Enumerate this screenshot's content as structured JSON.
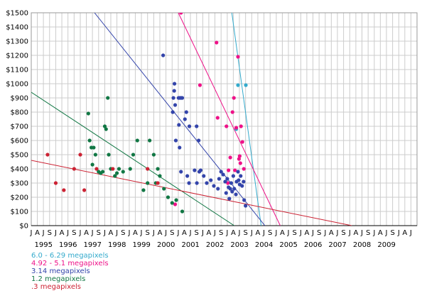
{
  "chart_data": {
    "type": "scatter",
    "title": "",
    "xlabel": "",
    "ylabel": "",
    "x_range": [
      "1995-01-01",
      "2010-09-30"
    ],
    "ylim": [
      0,
      1500
    ],
    "y_ticks": [
      {
        "value": 0,
        "label": "$0"
      },
      {
        "value": 100,
        "label": "$100"
      },
      {
        "value": 200,
        "label": "$200"
      },
      {
        "value": 300,
        "label": "$300"
      },
      {
        "value": 400,
        "label": "$400"
      },
      {
        "value": 500,
        "label": "$500"
      },
      {
        "value": 600,
        "label": "$600"
      },
      {
        "value": 700,
        "label": "$700"
      },
      {
        "value": 800,
        "label": "$800"
      },
      {
        "value": 900,
        "label": "$900"
      },
      {
        "value": 1000,
        "label": "$1000"
      },
      {
        "value": 1100,
        "label": "$1100"
      },
      {
        "value": 1200,
        "label": "$1200"
      },
      {
        "value": 1300,
        "label": "$1300"
      },
      {
        "value": 1400,
        "label": "$1400"
      },
      {
        "value": 1500,
        "label": "$1500"
      }
    ],
    "month_tick_labels": [
      "J",
      "A",
      "J",
      "S"
    ],
    "year_labels": [
      "1995",
      "1996",
      "1997",
      "1998",
      "1999",
      "2000",
      "2001",
      "2002",
      "2003",
      "2004",
      "2005",
      "2006",
      "2007",
      "2008",
      "2009"
    ],
    "grid": true,
    "legend_placement": "bottom-left",
    "series": [
      {
        "name": "6.0 - 6.29 megapixels",
        "color": "#33aacc",
        "points": [
          [
            "2003-05-15",
            680
          ],
          [
            "2003-06-10",
            990
          ],
          [
            "2003-10-05",
            990
          ]
        ],
        "trend": [
          [
            "2003-03-10",
            1500
          ],
          [
            "2004-05-20",
            0
          ]
        ]
      },
      {
        "name": "4.92 - 5.1 megapixels",
        "color": "#ee1188",
        "points": [
          [
            "2000-11-15",
            150
          ],
          [
            "2001-02-10",
            1500
          ],
          [
            "2001-11-20",
            990
          ],
          [
            "2002-07-25",
            1290
          ],
          [
            "2002-08-10",
            760
          ],
          [
            "2002-12-20",
            700
          ],
          [
            "2003-01-10",
            300
          ],
          [
            "2003-01-20",
            390
          ],
          [
            "2003-03-20",
            800
          ],
          [
            "2003-04-10",
            900
          ],
          [
            "2003-05-15",
            690
          ],
          [
            "2003-06-10",
            1190
          ],
          [
            "2003-06-25",
            470
          ],
          [
            "2003-07-05",
            490
          ],
          [
            "2003-07-15",
            440
          ],
          [
            "2003-07-25",
            700
          ],
          [
            "2003-08-15",
            590
          ],
          [
            "2003-04-25",
            390
          ],
          [
            "2003-02-15",
            480
          ],
          [
            "2003-09-05",
            400
          ]
        ],
        "trend": [
          [
            "2001-01-01",
            1500
          ],
          [
            "2005-03-01",
            0
          ]
        ]
      },
      {
        "name": "3.14 megapixels",
        "color": "#3344aa",
        "points": [
          [
            "2000-10-10",
            800
          ],
          [
            "2000-10-20",
            900
          ],
          [
            "2000-11-01",
            950
          ],
          [
            "2000-11-05",
            1000
          ],
          [
            "2000-11-15",
            850
          ],
          [
            "2000-11-25",
            600
          ],
          [
            "2001-01-05",
            900
          ],
          [
            "2001-01-20",
            900
          ],
          [
            "2001-02-05",
            900
          ],
          [
            "2001-02-15",
            900
          ],
          [
            "2001-03-01",
            900
          ],
          [
            "2001-04-10",
            750
          ],
          [
            "2001-05-01",
            800
          ],
          [
            "2000-05-20",
            1200
          ],
          [
            "2001-01-10",
            710
          ],
          [
            "2001-06-15",
            700
          ],
          [
            "2001-10-01",
            700
          ],
          [
            "2001-11-01",
            600
          ],
          [
            "2001-01-20",
            550
          ],
          [
            "2001-02-10",
            380
          ],
          [
            "2001-05-15",
            350
          ],
          [
            "2001-06-10",
            300
          ],
          [
            "2001-09-01",
            390
          ],
          [
            "2001-10-05",
            300
          ],
          [
            "2001-11-10",
            380
          ],
          [
            "2001-12-01",
            390
          ],
          [
            "2002-01-15",
            350
          ],
          [
            "2002-03-01",
            300
          ],
          [
            "2002-05-01",
            320
          ],
          [
            "2002-06-15",
            280
          ],
          [
            "2002-08-15",
            260
          ],
          [
            "2002-09-01",
            330
          ],
          [
            "2002-10-01",
            380
          ],
          [
            "2002-11-01",
            360
          ],
          [
            "2002-12-01",
            310
          ],
          [
            "2003-01-01",
            330
          ],
          [
            "2003-01-20",
            270
          ],
          [
            "2003-02-15",
            260
          ],
          [
            "2003-03-01",
            300
          ],
          [
            "2003-03-15",
            240
          ],
          [
            "2003-04-01",
            350
          ],
          [
            "2003-04-15",
            260
          ],
          [
            "2003-05-10",
            220
          ],
          [
            "2003-05-20",
            310
          ],
          [
            "2003-06-10",
            380
          ],
          [
            "2003-06-20",
            320
          ],
          [
            "2003-07-05",
            290
          ],
          [
            "2003-07-20",
            350
          ],
          [
            "2003-08-10",
            280
          ],
          [
            "2003-09-01",
            310
          ],
          [
            "2003-09-10",
            180
          ],
          [
            "2003-10-01",
            140
          ],
          [
            "2002-12-15",
            230
          ],
          [
            "2003-02-01",
            190
          ]
        ],
        "trend": [
          [
            "1997-08-01",
            1500
          ],
          [
            "2004-07-15",
            0
          ]
        ]
      },
      {
        "name": "1.2 megapixels",
        "color": "#117744",
        "points": [
          [
            "1997-05-01",
            790
          ],
          [
            "1997-05-20",
            600
          ],
          [
            "1997-06-15",
            550
          ],
          [
            "1997-07-01",
            430
          ],
          [
            "1997-07-20",
            550
          ],
          [
            "1997-08-15",
            500
          ],
          [
            "1997-10-01",
            380
          ],
          [
            "1997-11-01",
            370
          ],
          [
            "1997-12-01",
            380
          ],
          [
            "1998-01-01",
            700
          ],
          [
            "1998-01-20",
            680
          ],
          [
            "1998-02-15",
            900
          ],
          [
            "1998-03-01",
            500
          ],
          [
            "1998-04-01",
            400
          ],
          [
            "1998-06-01",
            350
          ],
          [
            "1998-07-01",
            370
          ],
          [
            "1998-08-01",
            400
          ],
          [
            "1998-10-01",
            380
          ],
          [
            "1999-01-15",
            400
          ],
          [
            "1999-03-01",
            500
          ],
          [
            "1999-05-01",
            600
          ],
          [
            "1999-08-01",
            250
          ],
          [
            "1999-10-01",
            300
          ],
          [
            "1999-11-01",
            600
          ],
          [
            "2000-01-01",
            500
          ],
          [
            "2000-02-01",
            300
          ],
          [
            "2000-03-01",
            400
          ],
          [
            "2000-04-01",
            350
          ],
          [
            "2000-06-01",
            260
          ],
          [
            "2000-08-01",
            200
          ],
          [
            "2000-10-01",
            160
          ],
          [
            "2000-12-01",
            180
          ],
          [
            "2001-03-01",
            100
          ]
        ],
        "trend": [
          [
            "1995-01-01",
            940
          ],
          [
            "2003-04-15",
            0
          ]
        ]
      },
      {
        "name": ".3 megapixels",
        "color": "#cc2233",
        "points": [
          [
            "1995-09-01",
            500
          ],
          [
            "1996-01-01",
            300
          ],
          [
            "1996-05-01",
            250
          ],
          [
            "1996-10-01",
            400
          ],
          [
            "1997-01-01",
            500
          ],
          [
            "1997-03-01",
            250
          ],
          [
            "1997-09-01",
            400
          ],
          [
            "1998-05-01",
            400
          ],
          [
            "1999-10-01",
            400
          ],
          [
            "2000-03-01",
            300
          ]
        ],
        "trend": [
          [
            "1995-01-01",
            460
          ],
          [
            "2008-02-01",
            0
          ]
        ]
      }
    ]
  }
}
